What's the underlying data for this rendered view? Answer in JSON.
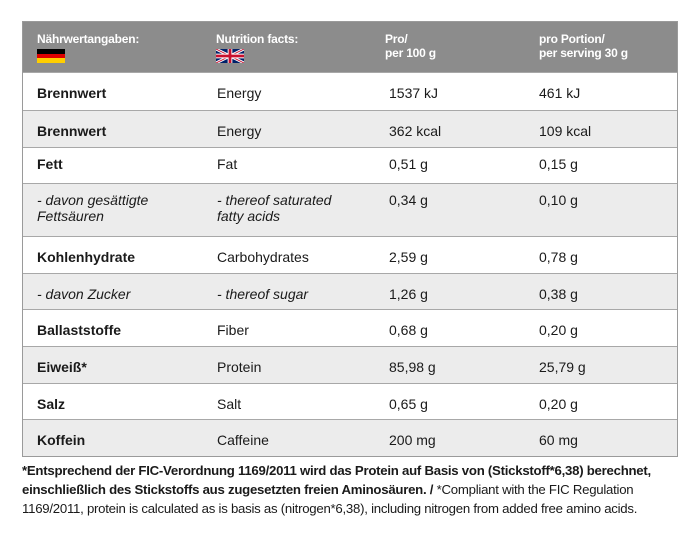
{
  "header": {
    "col_de": "Nährwertangaben:",
    "col_en": "Nutrition facts:",
    "col_100_line1": "Pro/",
    "col_100_line2": "per 100 g",
    "col_portion_line1": "pro Portion/",
    "col_portion_line2": "per serving 30 g",
    "flag_de_colors": [
      "#000000",
      "#dd0000",
      "#ffce00"
    ],
    "flag_uk": "uk-flag-icon"
  },
  "rows": [
    {
      "de": "Brennwert",
      "en": "Energy",
      "per100": "1537 kJ",
      "portion": "461 kJ"
    },
    {
      "de": "Brennwert",
      "en": "Energy",
      "per100": "362 kcal",
      "portion": "109 kcal"
    },
    {
      "de": "Fett",
      "en": "Fat",
      "per100": "0,51 g",
      "portion": "0,15 g"
    },
    {
      "de": "- davon gesättigte",
      "de2": "Fettsäuren",
      "en": "- thereof saturated",
      "en2": "fatty acids",
      "per100": "0,34 g",
      "portion": "0,10 g"
    },
    {
      "de": "Kohlenhydrate",
      "en": "Carbohydrates",
      "per100": "2,59 g",
      "portion": "0,78 g"
    },
    {
      "de": "- davon Zucker",
      "en": "- thereof sugar",
      "per100": "1,26 g",
      "portion": "0,38 g"
    },
    {
      "de": "Ballaststoffe",
      "en": "Fiber",
      "per100": "0,68 g",
      "portion": "0,20 g"
    },
    {
      "de": "Eiweiß*",
      "en": "Protein",
      "per100": "85,98 g",
      "portion": "25,79 g"
    },
    {
      "de": "Salz",
      "en": "Salt",
      "per100": "0,65 g",
      "portion": "0,20 g"
    },
    {
      "de": "Koffein",
      "en": "Caffeine",
      "per100": "200 mg",
      "portion": "60 mg"
    }
  ],
  "footnote": {
    "bold_part": "*Entsprechend der FIC-Verordnung 1169/2011 wird das Protein auf Basis von (Stickstoff*6,38) berechnet, einschließlich des Stickstoffs aus zugesetzten freien Aminosäuren. /",
    "regular_part": " *Compliant with the FIC Regulation 1169/2011, protein is calculated as is basis as (nitrogen*6,38), including nitrogen from added free amino acids."
  }
}
